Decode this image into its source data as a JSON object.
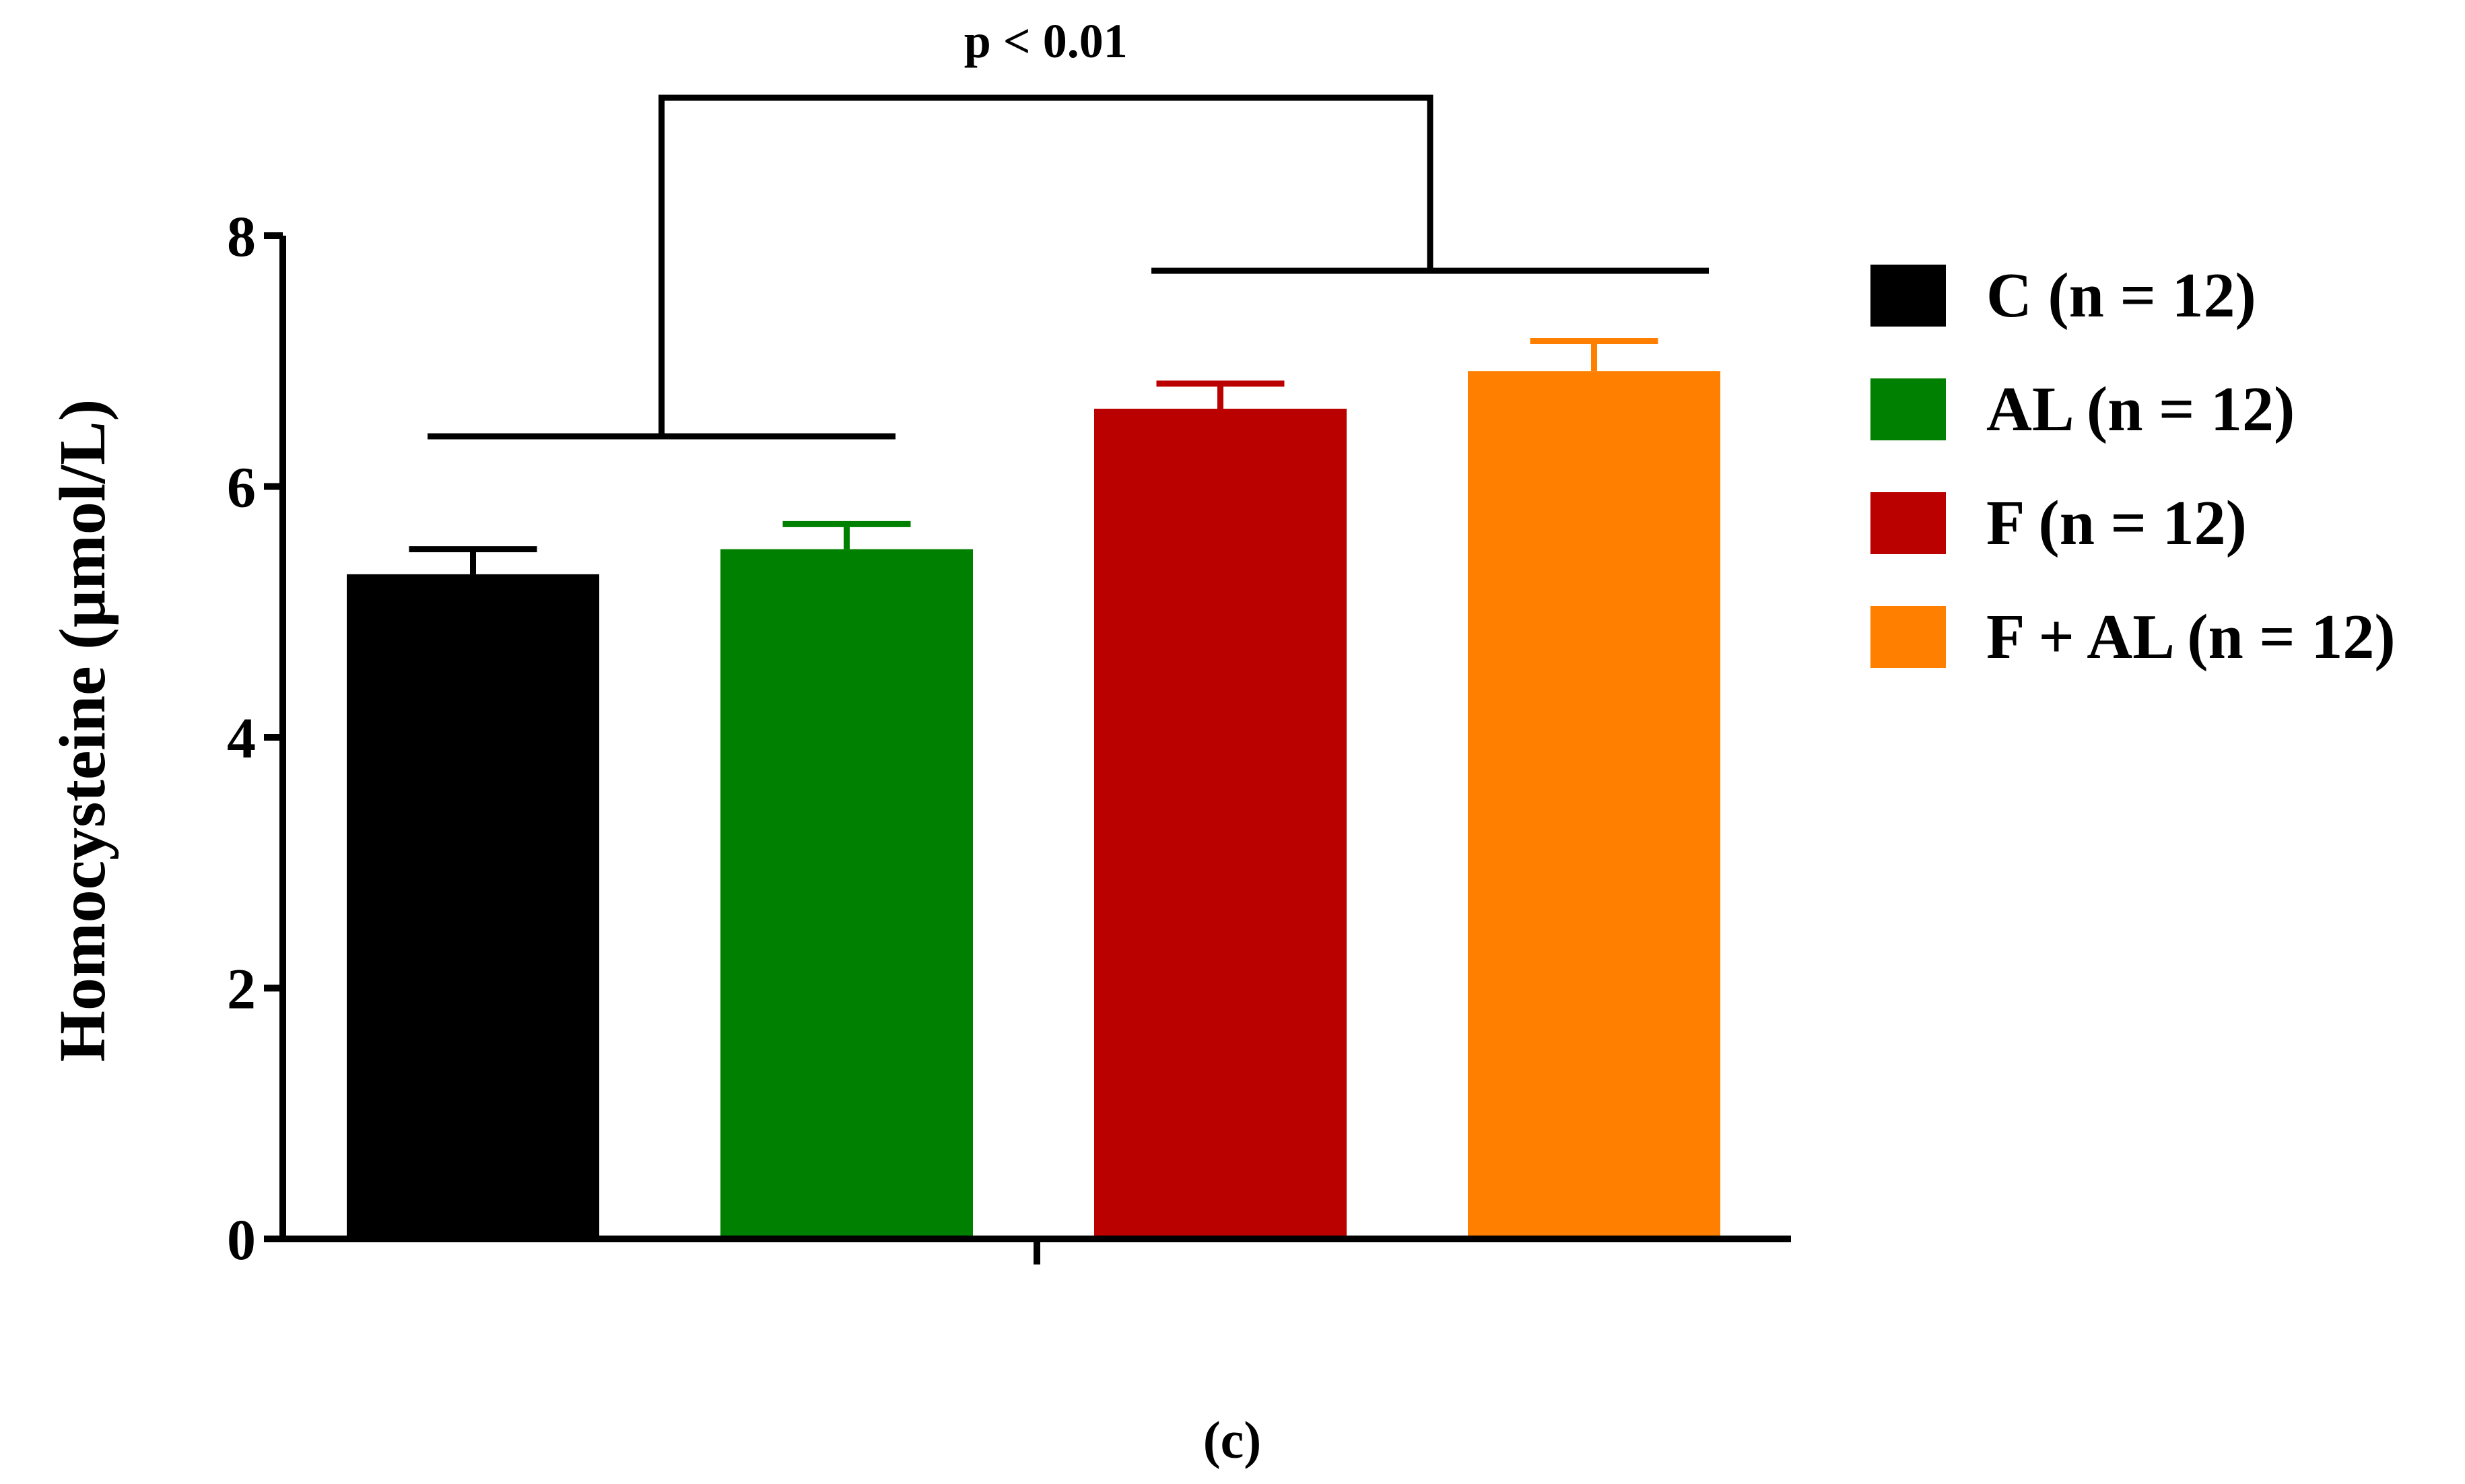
{
  "chart_data": {
    "type": "bar",
    "ylabel": "Homocysteine (µmol/L)",
    "ylim": [
      0,
      8
    ],
    "yticks": [
      "0",
      "2",
      "4",
      "6",
      "8"
    ],
    "series": [
      {
        "name": "C (n = 12)",
        "value": 5.3,
        "error": 0.2,
        "color": "#000000"
      },
      {
        "name": "AL (n = 12)",
        "value": 5.5,
        "error": 0.2,
        "color": "#008000"
      },
      {
        "name": "F (n = 12)",
        "value": 6.62,
        "error": 0.2,
        "color": "#bb0000"
      },
      {
        "name": "F + AL (n = 12)",
        "value": 6.92,
        "error": 0.24,
        "color": "#ff8000"
      }
    ],
    "legend_position": "right",
    "annotation": {
      "text": "p < 0.01",
      "group_a": [
        0,
        1
      ],
      "group_b": [
        2,
        3
      ],
      "group_a_level": 6.4,
      "group_b_level": 7.72,
      "bracket_level": 9.1
    },
    "panel_label": "(c)"
  }
}
